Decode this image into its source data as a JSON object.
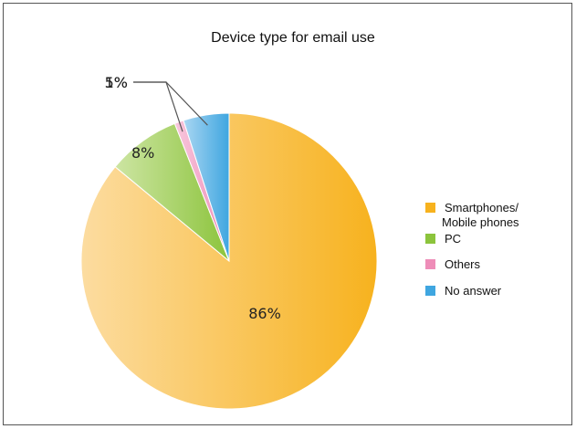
{
  "chart_data": {
    "type": "pie",
    "title": "Device type for email use",
    "slices": [
      {
        "label": "Smartphones/ Mobile phones",
        "label_lines": [
          "Smartphones/",
          "Mobile phones"
        ],
        "value": 86,
        "value_label": "86%",
        "color": "#F7B21E",
        "color_light": "#FCDCA0"
      },
      {
        "label": "PC",
        "label_lines": [
          "PC"
        ],
        "value": 8,
        "value_label": "8%",
        "color": "#8CC43C",
        "color_light": "#CDE5A3"
      },
      {
        "label": "Others",
        "label_lines": [
          "Others"
        ],
        "value": 1,
        "value_label": "1%",
        "color": "#EE8DB8",
        "color_light": "#F8C8DD"
      },
      {
        "label": "No answer",
        "label_lines": [
          "No answer"
        ],
        "value": 5,
        "value_label": "5%",
        "color": "#3FA6E0",
        "color_light": "#A9D6F2"
      }
    ],
    "legend_position": "right"
  }
}
